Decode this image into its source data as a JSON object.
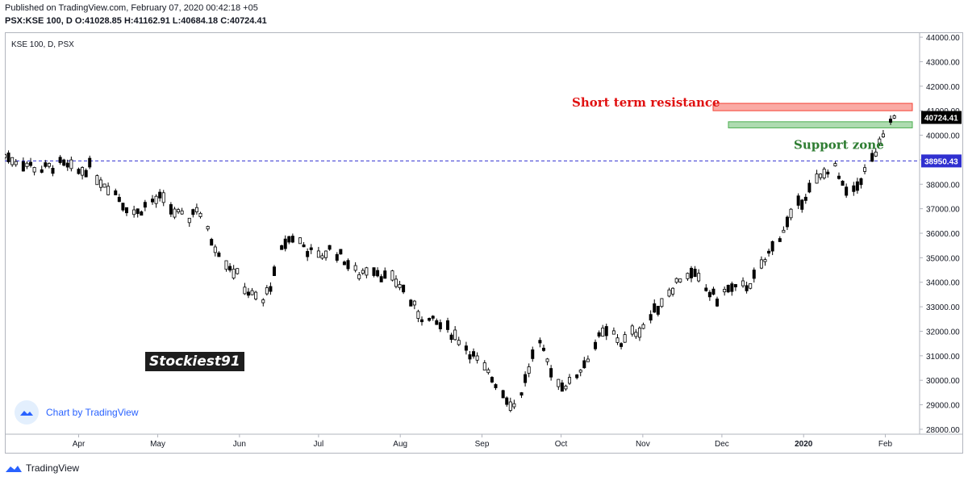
{
  "header": {
    "published": "Published on TradingView.com, February 07, 2020 00:42:18 +05",
    "ohlc": "PSX:KSE 100, D O:41028.85 H:41162.91 L:40684.18 C:40724.41"
  },
  "footer": {
    "brand": "TradingView"
  },
  "badge": {
    "label": "Chart by TradingView"
  },
  "watermark": "Stockiest91",
  "colors": {
    "up_fill": "#ffffff",
    "candle": "#000000",
    "resistance": "#f44336",
    "support": "#4caf50",
    "dashed": "#3030d0",
    "resistance_text": "#e01010",
    "support_text": "#2e7d32",
    "brand": "#2962ff"
  },
  "chart_data": {
    "type": "candlestick",
    "title": "KSE 100, D, PSX",
    "xlabel": "",
    "ylabel": "",
    "ylim": [
      27800,
      44200
    ],
    "y_ticks": [
      28000,
      29000,
      30000,
      31000,
      32000,
      33000,
      34000,
      35000,
      36000,
      37000,
      38000,
      39000,
      40000,
      41000,
      42000,
      43000,
      44000
    ],
    "y_tick_labels": [
      "28000.00",
      "29000.00",
      "30000.00",
      "31000.00",
      "32000.00",
      "33000.00",
      "34000.00",
      "35000.00",
      "36000.00",
      "37000.00",
      "38000.00",
      "39000.00",
      "40000.00",
      "41000.00",
      "42000.00",
      "43000.00",
      "44000.00"
    ],
    "x_range": [
      "2019-03-04",
      "2020-02-14"
    ],
    "x_ticks": [
      {
        "date": "2019-04-01",
        "label": "Apr"
      },
      {
        "date": "2019-05-01",
        "label": "May"
      },
      {
        "date": "2019-06-01",
        "label": "Jun"
      },
      {
        "date": "2019-07-01",
        "label": "Jul"
      },
      {
        "date": "2019-08-01",
        "label": "Aug"
      },
      {
        "date": "2019-09-01",
        "label": "Sep"
      },
      {
        "date": "2019-10-01",
        "label": "Oct"
      },
      {
        "date": "2019-11-01",
        "label": "Nov"
      },
      {
        "date": "2019-12-01",
        "label": "Dec"
      },
      {
        "date": "2020-01-01",
        "label": "2020"
      },
      {
        "date": "2020-02-01",
        "label": "Feb"
      }
    ],
    "path": [
      [
        "2019-03-04",
        39150
      ],
      [
        "2019-03-10",
        38900
      ],
      [
        "2019-03-18",
        38600
      ],
      [
        "2019-03-25",
        38800
      ],
      [
        "2019-04-01",
        38500
      ],
      [
        "2019-04-05",
        38700
      ],
      [
        "2019-04-09",
        38200
      ],
      [
        "2019-04-14",
        37800
      ],
      [
        "2019-04-18",
        37200
      ],
      [
        "2019-04-23",
        36800
      ],
      [
        "2019-04-28",
        37300
      ],
      [
        "2019-05-02",
        37400
      ],
      [
        "2019-05-07",
        36900
      ],
      [
        "2019-05-12",
        36500
      ],
      [
        "2019-05-16",
        37100
      ],
      [
        "2019-05-21",
        35800
      ],
      [
        "2019-05-26",
        35000
      ],
      [
        "2019-05-31",
        34300
      ],
      [
        "2019-06-05",
        33500
      ],
      [
        "2019-06-10",
        33200
      ],
      [
        "2019-06-14",
        34200
      ],
      [
        "2019-06-18",
        35600
      ],
      [
        "2019-06-22",
        35900
      ],
      [
        "2019-06-27",
        35300
      ],
      [
        "2019-07-01",
        35000
      ],
      [
        "2019-07-06",
        35400
      ],
      [
        "2019-07-11",
        34900
      ],
      [
        "2019-07-16",
        34300
      ],
      [
        "2019-07-21",
        34700
      ],
      [
        "2019-07-26",
        34200
      ],
      [
        "2019-07-31",
        34000
      ],
      [
        "2019-08-03",
        33600
      ],
      [
        "2019-08-06",
        33000
      ],
      [
        "2019-08-10",
        32500
      ],
      [
        "2019-08-15",
        32300
      ],
      [
        "2019-08-20",
        32000
      ],
      [
        "2019-08-25",
        31500
      ],
      [
        "2019-08-30",
        30800
      ],
      [
        "2019-09-03",
        30300
      ],
      [
        "2019-09-07",
        29800
      ],
      [
        "2019-09-11",
        29200
      ],
      [
        "2019-09-14",
        28900
      ],
      [
        "2019-09-18",
        30200
      ],
      [
        "2019-09-22",
        31600
      ],
      [
        "2019-09-26",
        30700
      ],
      [
        "2019-09-30",
        29900
      ],
      [
        "2019-10-04",
        29800
      ],
      [
        "2019-10-08",
        30400
      ],
      [
        "2019-10-12",
        31100
      ],
      [
        "2019-10-16",
        31800
      ],
      [
        "2019-10-20",
        32000
      ],
      [
        "2019-10-24",
        31500
      ],
      [
        "2019-10-28",
        31900
      ],
      [
        "2019-11-01",
        32200
      ],
      [
        "2019-11-05",
        32700
      ],
      [
        "2019-11-09",
        33400
      ],
      [
        "2019-11-13",
        33900
      ],
      [
        "2019-11-17",
        34400
      ],
      [
        "2019-11-21",
        34200
      ],
      [
        "2019-11-25",
        33700
      ],
      [
        "2019-11-29",
        33300
      ],
      [
        "2019-12-03",
        33700
      ],
      [
        "2019-12-07",
        33700
      ],
      [
        "2019-12-11",
        33900
      ],
      [
        "2019-12-15",
        34400
      ],
      [
        "2019-12-19",
        35200
      ],
      [
        "2019-12-23",
        35900
      ],
      [
        "2019-12-27",
        36600
      ],
      [
        "2019-12-31",
        37300
      ],
      [
        "2020-01-04",
        37900
      ],
      [
        "2020-01-08",
        38300
      ],
      [
        "2020-01-12",
        38900
      ],
      [
        "2020-01-16",
        37800
      ],
      [
        "2020-01-19",
        37400
      ],
      [
        "2020-01-23",
        38300
      ],
      [
        "2020-01-27",
        39000
      ],
      [
        "2020-01-31",
        39800
      ],
      [
        "2020-02-03",
        40600
      ],
      [
        "2020-02-06",
        40724
      ]
    ]
  },
  "annotations": {
    "resistance": {
      "label": "Short term resistance",
      "low": 41000,
      "high": 41300
    },
    "support": {
      "label": "Support zone",
      "low": 40300,
      "high": 40550
    },
    "dashed_level": {
      "value": 38950.43,
      "label": "38950.43"
    },
    "last_price": {
      "value": 40724.41,
      "label": "40724.41"
    }
  }
}
